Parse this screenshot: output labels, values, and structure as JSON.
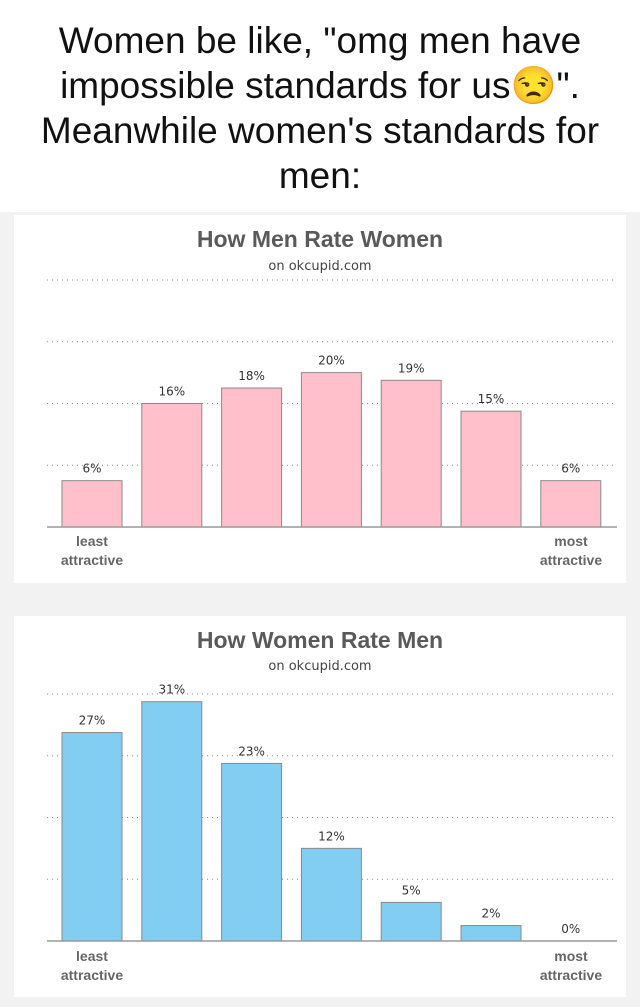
{
  "caption": "Women be like, \"omg men have impossible standards for us😒\". Meanwhile women's standards for men:",
  "chart_data": [
    {
      "type": "bar",
      "title": "How Men Rate Women",
      "subtitle": "on okcupid.com",
      "categories": [
        "least attractive",
        "",
        "",
        "",
        "",
        "",
        "most attractive"
      ],
      "values": [
        6,
        16,
        18,
        20,
        19,
        15,
        6
      ],
      "data_labels": [
        "6%",
        "16%",
        "18%",
        "20%",
        "19%",
        "15%",
        "6%"
      ],
      "x_left_label": [
        "least",
        "attractive"
      ],
      "x_right_label": [
        "most",
        "attractive"
      ],
      "ylim": [
        0,
        32
      ],
      "grid": true,
      "grid_style": "dotted",
      "bar_color": "#ffc0cb"
    },
    {
      "type": "bar",
      "title": "How Women Rate Men",
      "subtitle": "on okcupid.com",
      "categories": [
        "least attractive",
        "",
        "",
        "",
        "",
        "",
        "most attractive"
      ],
      "values": [
        27,
        31,
        23,
        12,
        5,
        2,
        0
      ],
      "data_labels": [
        "27%",
        "31%",
        "23%",
        "12%",
        "5%",
        "2%",
        "0%"
      ],
      "x_left_label": [
        "least",
        "attractive"
      ],
      "x_right_label": [
        "most",
        "attractive"
      ],
      "ylim": [
        0,
        32
      ],
      "grid": true,
      "grid_style": "dotted",
      "bar_color": "#82cdf2"
    }
  ]
}
